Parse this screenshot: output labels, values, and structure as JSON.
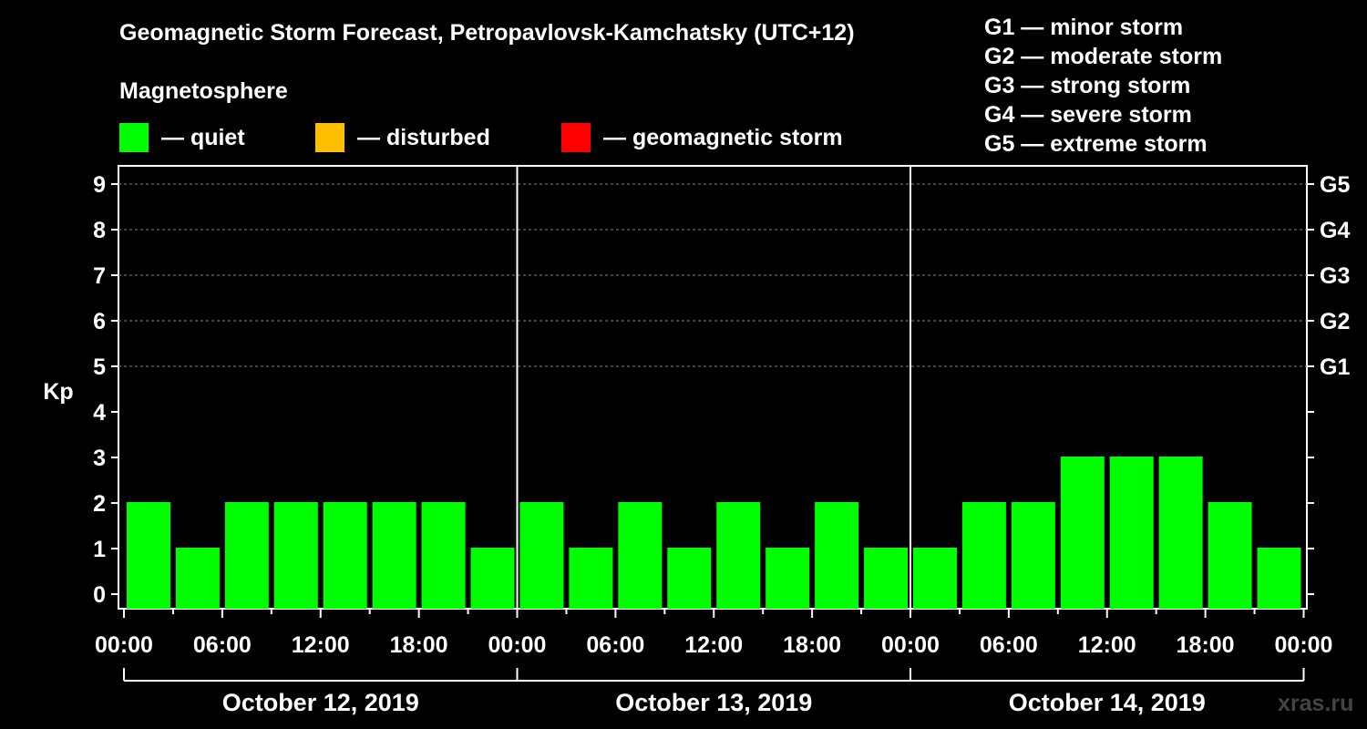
{
  "title": "Geomagnetic Storm Forecast, Petropavlovsk-Kamchatsky (UTC+12)",
  "magnetosphere_label": "Magnetosphere",
  "legend": [
    {
      "label": "— quiet",
      "color": "#00ff00"
    },
    {
      "label": "— disturbed",
      "color": "#ffbf00"
    },
    {
      "label": "— geomagnetic storm",
      "color": "#ff0000"
    }
  ],
  "g_scale": [
    "G1 — minor storm",
    "G2 — moderate storm",
    "G3 — strong storm",
    "G4 — severe storm",
    "G5 — extreme storm"
  ],
  "watermark": "xras.ru",
  "colors": {
    "background": "#000000",
    "quiet": "#00ff00",
    "grid": "#888888",
    "axis": "#ffffff"
  },
  "chart_data": {
    "type": "bar",
    "ylabel": "Kp",
    "ylim": [
      0,
      9
    ],
    "y_ticks": [
      "0",
      "1",
      "2",
      "3",
      "4",
      "5",
      "6",
      "7",
      "8",
      "9"
    ],
    "right_axis_labels": [
      {
        "kp": 5,
        "label": "G1"
      },
      {
        "kp": 6,
        "label": "G2"
      },
      {
        "kp": 7,
        "label": "G3"
      },
      {
        "kp": 8,
        "label": "G4"
      },
      {
        "kp": 9,
        "label": "G5"
      }
    ],
    "x_tick_labels": [
      "00:00",
      "06:00",
      "12:00",
      "18:00",
      "00:00",
      "06:00",
      "12:00",
      "18:00",
      "00:00",
      "06:00",
      "12:00",
      "18:00",
      "00:00"
    ],
    "days": [
      "October 12, 2019",
      "October 13, 2019",
      "October 14, 2019"
    ],
    "interval_hours": 3,
    "grid": true,
    "series": [
      {
        "values": [
          2,
          1,
          2,
          2,
          2,
          2,
          2,
          1,
          2,
          1,
          2,
          1,
          2,
          1,
          2,
          1,
          1,
          2,
          2,
          3,
          3,
          3,
          2,
          1
        ],
        "color": "#00ff00"
      }
    ]
  }
}
